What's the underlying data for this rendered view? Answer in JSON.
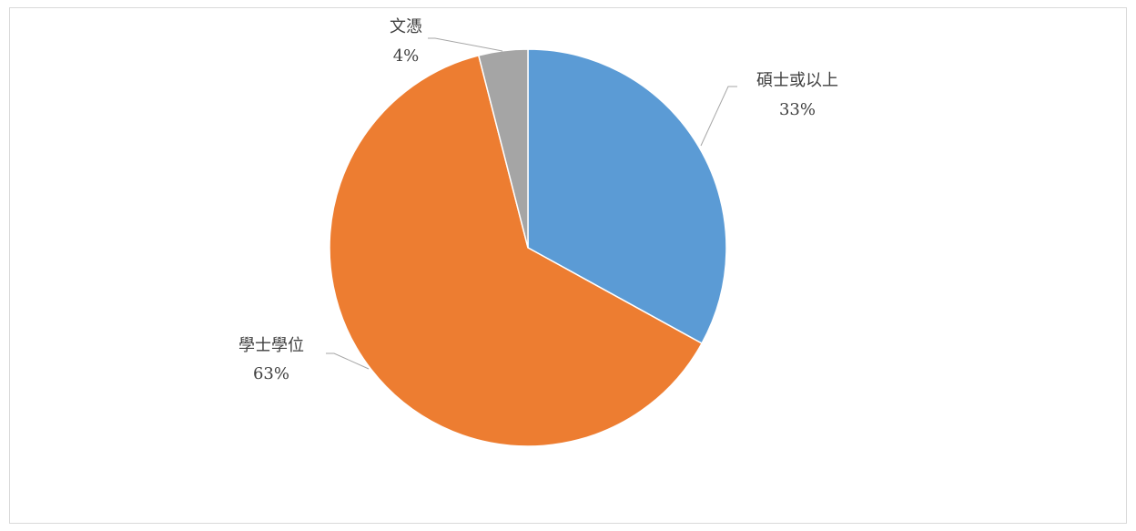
{
  "chart_data": {
    "type": "pie",
    "categories": [
      "碩士或以上",
      "學士學位",
      "文憑"
    ],
    "values": [
      33,
      63,
      4
    ],
    "value_labels": [
      "33%",
      "63%",
      "4%"
    ],
    "colors": [
      "#5b9bd5",
      "#ed7d31",
      "#a5a5a5"
    ]
  }
}
